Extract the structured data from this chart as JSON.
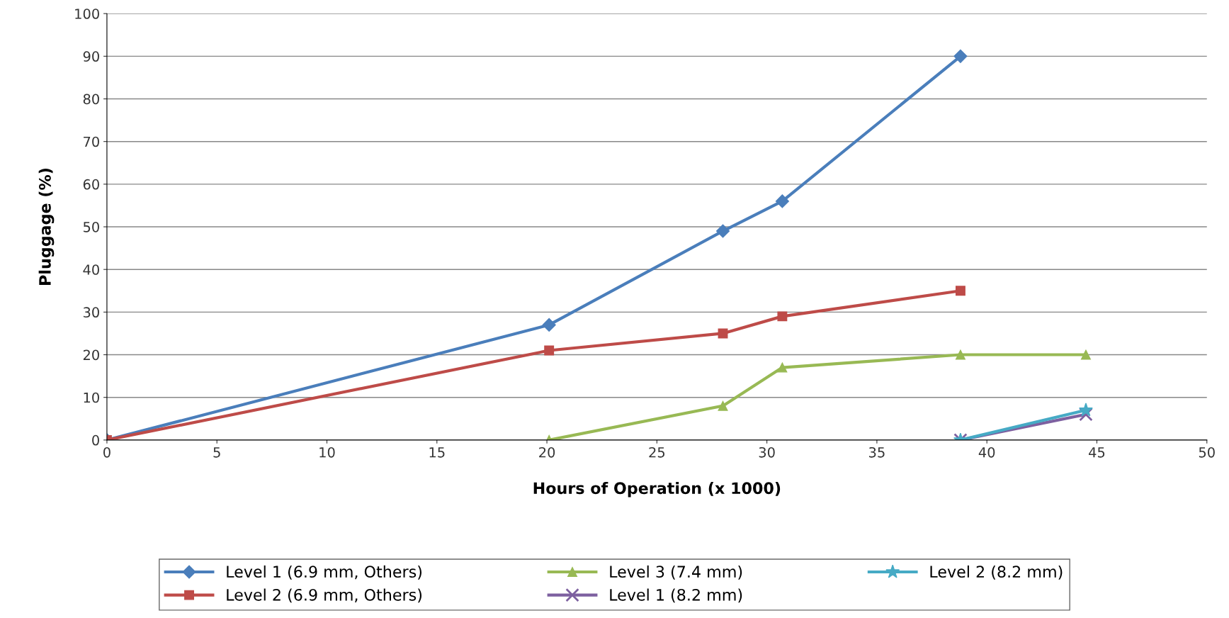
{
  "chart_data": {
    "type": "line",
    "xlabel": "Hours of Operation (x 1000)",
    "ylabel": "Pluggage (%)",
    "xlim": [
      0,
      50
    ],
    "xticks": [
      0,
      5,
      10,
      15,
      20,
      25,
      30,
      35,
      40,
      45,
      50
    ],
    "ylim": [
      0,
      100
    ],
    "yticks": [
      0,
      10,
      20,
      30,
      40,
      50,
      60,
      70,
      80,
      90,
      100
    ],
    "grid": "y",
    "legend": "bottom",
    "line_style": "solid",
    "series": [
      {
        "name": "Level 1 (6.9 mm, Others)",
        "color": "#4a7ebb",
        "marker": "diamond",
        "x": [
          0,
          20.1,
          28,
          30.7,
          38.8
        ],
        "values": [
          0,
          27,
          49,
          56,
          90
        ]
      },
      {
        "name": "Level 2 (6.9 mm, Others)",
        "color": "#be4b48",
        "marker": "square",
        "x": [
          0,
          20.1,
          28,
          30.7,
          38.8
        ],
        "values": [
          0,
          21,
          25,
          29,
          35
        ]
      },
      {
        "name": "Level 3 (7.4 mm)",
        "color": "#98b954",
        "marker": "triangle",
        "x": [
          20.1,
          28,
          30.7,
          38.8,
          44.5
        ],
        "values": [
          0,
          8,
          17,
          20,
          20
        ]
      },
      {
        "name": "Level 1 (8.2 mm)",
        "color": "#7d60a0",
        "marker": "cross",
        "x": [
          38.8,
          44.5
        ],
        "values": [
          0,
          6
        ]
      },
      {
        "name": "Level 2 (8.2 mm)",
        "color": "#46aac5",
        "marker": "star",
        "x": [
          38.8,
          44.5
        ],
        "values": [
          0,
          7
        ]
      }
    ]
  }
}
